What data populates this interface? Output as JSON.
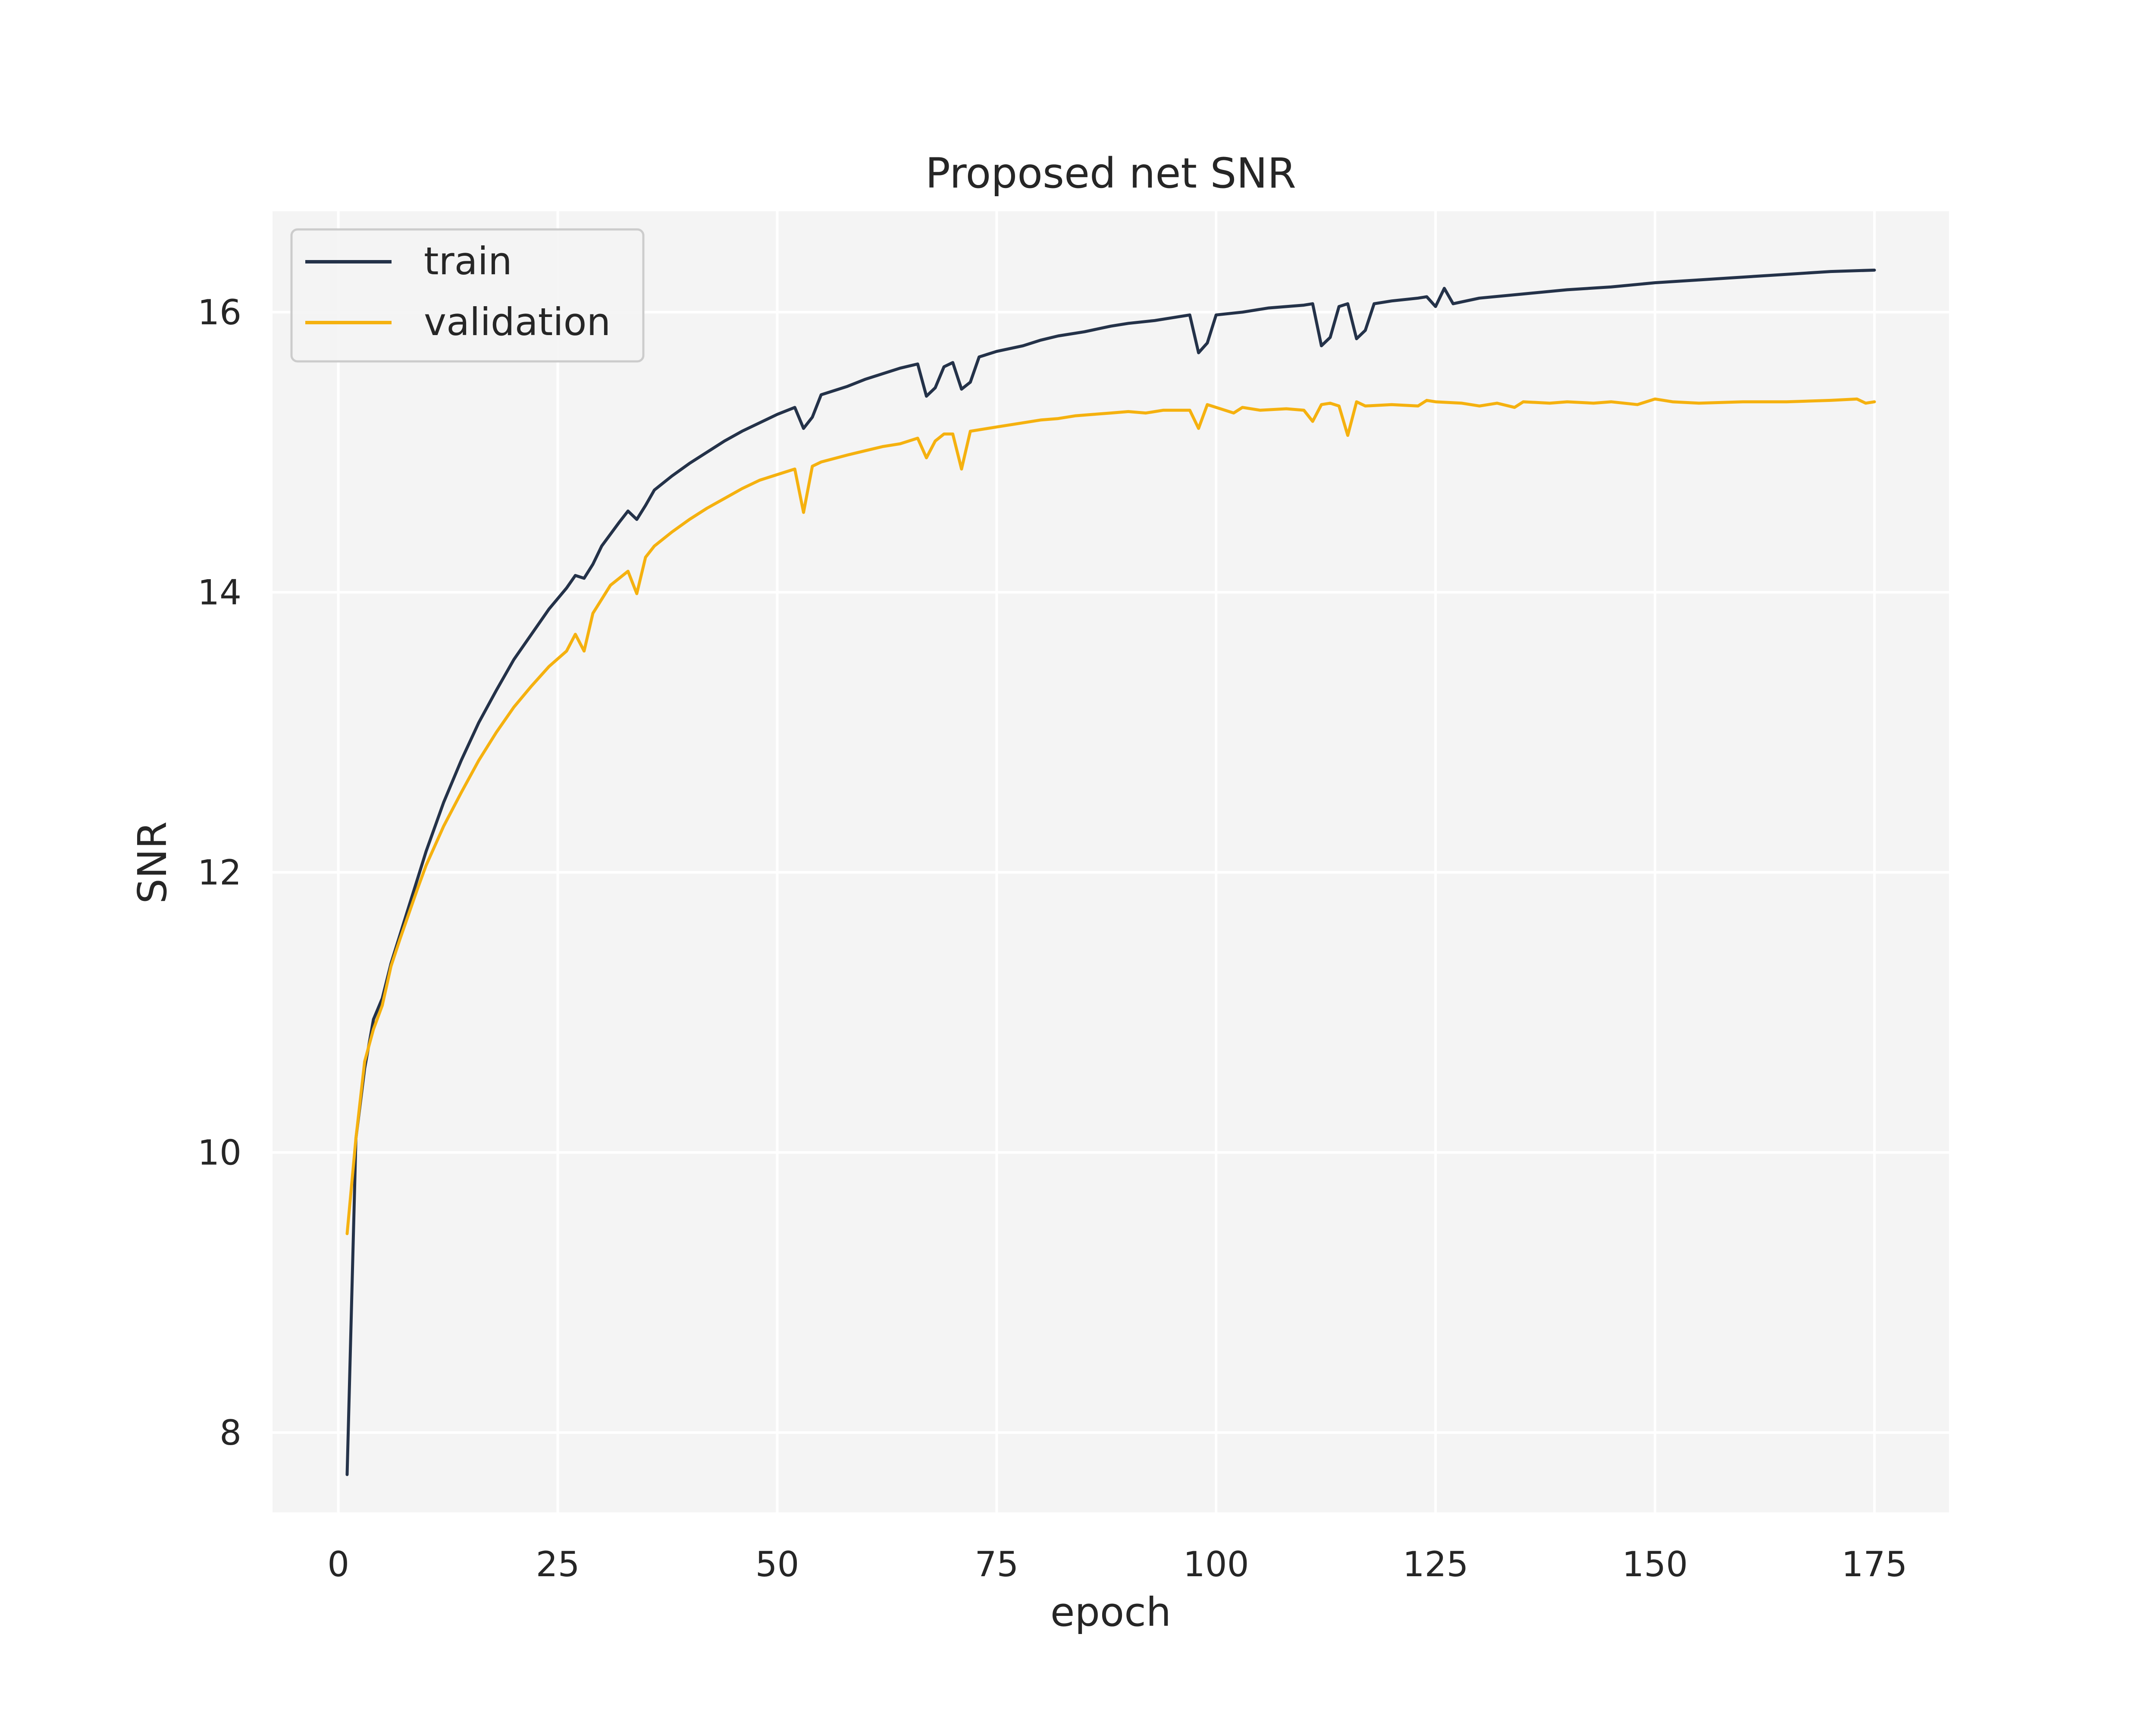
{
  "chart_data": {
    "type": "line",
    "title": "Proposed net SNR",
    "xlabel": "epoch",
    "ylabel": "SNR",
    "xlim": [
      -7.5,
      183.5
    ],
    "ylim": [
      7.43,
      16.72
    ],
    "xticks": [
      0,
      25,
      50,
      75,
      100,
      125,
      150,
      175
    ],
    "yticks": [
      8,
      10,
      12,
      14,
      16
    ],
    "xtick_labels": [
      "0",
      "25",
      "50",
      "75",
      "100",
      "125",
      "150",
      "175"
    ],
    "ytick_labels": [
      "8",
      "10",
      "12",
      "14",
      "16"
    ],
    "grid": true,
    "legend_position": "top-left",
    "colors": {
      "background": "#f4f4f4",
      "grid": "#ffffff",
      "train": "#243249",
      "validation": "#f5b10f"
    },
    "series": [
      {
        "name": "train",
        "color": "#243249",
        "points": [
          [
            1,
            7.7
          ],
          [
            2,
            10.1
          ],
          [
            3,
            10.6
          ],
          [
            4,
            10.95
          ],
          [
            5,
            11.1
          ],
          [
            6,
            11.35
          ],
          [
            7,
            11.55
          ],
          [
            8,
            11.75
          ],
          [
            9,
            11.95
          ],
          [
            10,
            12.15
          ],
          [
            12,
            12.5
          ],
          [
            14,
            12.8
          ],
          [
            16,
            13.07
          ],
          [
            18,
            13.3
          ],
          [
            20,
            13.52
          ],
          [
            22,
            13.7
          ],
          [
            24,
            13.88
          ],
          [
            26,
            14.03
          ],
          [
            27,
            14.12
          ],
          [
            28,
            14.1
          ],
          [
            29,
            14.2
          ],
          [
            30,
            14.33
          ],
          [
            32,
            14.5
          ],
          [
            33,
            14.58
          ],
          [
            34,
            14.52
          ],
          [
            35,
            14.62
          ],
          [
            36,
            14.73
          ],
          [
            38,
            14.83
          ],
          [
            40,
            14.92
          ],
          [
            42,
            15.0
          ],
          [
            44,
            15.08
          ],
          [
            46,
            15.15
          ],
          [
            48,
            15.21
          ],
          [
            50,
            15.27
          ],
          [
            52,
            15.32
          ],
          [
            53,
            15.17
          ],
          [
            54,
            15.25
          ],
          [
            55,
            15.41
          ],
          [
            58,
            15.47
          ],
          [
            60,
            15.52
          ],
          [
            62,
            15.56
          ],
          [
            64,
            15.6
          ],
          [
            66,
            15.63
          ],
          [
            67,
            15.4
          ],
          [
            68,
            15.46
          ],
          [
            69,
            15.61
          ],
          [
            70,
            15.64
          ],
          [
            71,
            15.45
          ],
          [
            72,
            15.5
          ],
          [
            73,
            15.68
          ],
          [
            75,
            15.72
          ],
          [
            78,
            15.76
          ],
          [
            80,
            15.8
          ],
          [
            82,
            15.83
          ],
          [
            85,
            15.86
          ],
          [
            88,
            15.9
          ],
          [
            90,
            15.92
          ],
          [
            93,
            15.94
          ],
          [
            96,
            15.97
          ],
          [
            97,
            15.98
          ],
          [
            98,
            15.71
          ],
          [
            99,
            15.78
          ],
          [
            100,
            15.98
          ],
          [
            103,
            16.0
          ],
          [
            106,
            16.03
          ],
          [
            110,
            16.05
          ],
          [
            111,
            16.06
          ],
          [
            112,
            15.76
          ],
          [
            113,
            15.82
          ],
          [
            114,
            16.04
          ],
          [
            115,
            16.06
          ],
          [
            116,
            15.81
          ],
          [
            117,
            15.87
          ],
          [
            118,
            16.06
          ],
          [
            120,
            16.08
          ],
          [
            123,
            16.1
          ],
          [
            124,
            16.11
          ],
          [
            125,
            16.04
          ],
          [
            126,
            16.17
          ],
          [
            127,
            16.06
          ],
          [
            130,
            16.1
          ],
          [
            135,
            16.13
          ],
          [
            140,
            16.16
          ],
          [
            145,
            16.18
          ],
          [
            150,
            16.21
          ],
          [
            155,
            16.23
          ],
          [
            160,
            16.25
          ],
          [
            165,
            16.27
          ],
          [
            170,
            16.29
          ],
          [
            175,
            16.3
          ]
        ]
      },
      {
        "name": "validation",
        "color": "#f5b10f",
        "points": [
          [
            1,
            9.42
          ],
          [
            2,
            10.1
          ],
          [
            3,
            10.65
          ],
          [
            4,
            10.88
          ],
          [
            5,
            11.05
          ],
          [
            6,
            11.33
          ],
          [
            7,
            11.52
          ],
          [
            8,
            11.7
          ],
          [
            9,
            11.88
          ],
          [
            10,
            12.05
          ],
          [
            12,
            12.33
          ],
          [
            14,
            12.57
          ],
          [
            16,
            12.8
          ],
          [
            18,
            13.0
          ],
          [
            20,
            13.18
          ],
          [
            22,
            13.33
          ],
          [
            24,
            13.47
          ],
          [
            26,
            13.58
          ],
          [
            27,
            13.7
          ],
          [
            28,
            13.58
          ],
          [
            29,
            13.85
          ],
          [
            30,
            13.95
          ],
          [
            31,
            14.05
          ],
          [
            32,
            14.1
          ],
          [
            33,
            14.15
          ],
          [
            34,
            13.99
          ],
          [
            35,
            14.25
          ],
          [
            36,
            14.33
          ],
          [
            38,
            14.43
          ],
          [
            40,
            14.52
          ],
          [
            42,
            14.6
          ],
          [
            44,
            14.67
          ],
          [
            46,
            14.74
          ],
          [
            48,
            14.8
          ],
          [
            50,
            14.84
          ],
          [
            52,
            14.88
          ],
          [
            53,
            14.57
          ],
          [
            54,
            14.9
          ],
          [
            55,
            14.93
          ],
          [
            58,
            14.98
          ],
          [
            60,
            15.01
          ],
          [
            62,
            15.04
          ],
          [
            64,
            15.06
          ],
          [
            66,
            15.1
          ],
          [
            67,
            14.96
          ],
          [
            68,
            15.08
          ],
          [
            69,
            15.13
          ],
          [
            70,
            15.13
          ],
          [
            71,
            14.88
          ],
          [
            72,
            15.15
          ],
          [
            75,
            15.18
          ],
          [
            78,
            15.21
          ],
          [
            80,
            15.23
          ],
          [
            82,
            15.24
          ],
          [
            84,
            15.26
          ],
          [
            86,
            15.27
          ],
          [
            88,
            15.28
          ],
          [
            90,
            15.29
          ],
          [
            92,
            15.28
          ],
          [
            94,
            15.3
          ],
          [
            96,
            15.3
          ],
          [
            97,
            15.3
          ],
          [
            98,
            15.17
          ],
          [
            99,
            15.34
          ],
          [
            100,
            15.32
          ],
          [
            102,
            15.28
          ],
          [
            103,
            15.32
          ],
          [
            105,
            15.3
          ],
          [
            108,
            15.31
          ],
          [
            110,
            15.3
          ],
          [
            111,
            15.22
          ],
          [
            112,
            15.34
          ],
          [
            113,
            15.35
          ],
          [
            114,
            15.33
          ],
          [
            115,
            15.12
          ],
          [
            116,
            15.36
          ],
          [
            117,
            15.33
          ],
          [
            120,
            15.34
          ],
          [
            123,
            15.33
          ],
          [
            124,
            15.37
          ],
          [
            125,
            15.36
          ],
          [
            128,
            15.35
          ],
          [
            130,
            15.33
          ],
          [
            132,
            15.35
          ],
          [
            134,
            15.32
          ],
          [
            135,
            15.36
          ],
          [
            138,
            15.35
          ],
          [
            140,
            15.36
          ],
          [
            143,
            15.35
          ],
          [
            145,
            15.36
          ],
          [
            148,
            15.34
          ],
          [
            150,
            15.38
          ],
          [
            152,
            15.36
          ],
          [
            155,
            15.35
          ],
          [
            160,
            15.36
          ],
          [
            165,
            15.36
          ],
          [
            170,
            15.37
          ],
          [
            173,
            15.38
          ],
          [
            174,
            15.35
          ],
          [
            175,
            15.36
          ]
        ]
      }
    ]
  }
}
